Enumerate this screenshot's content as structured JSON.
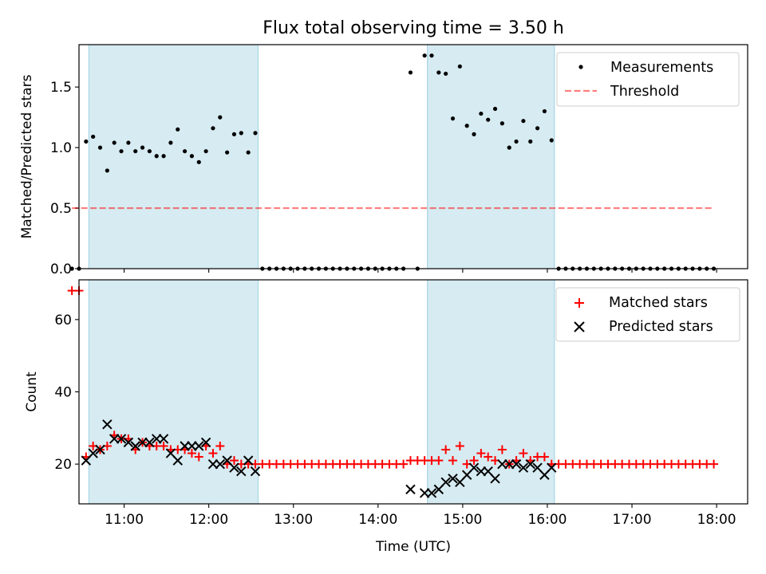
{
  "title": "Flux total observing time = 3.50 h",
  "colors": {
    "shade": "#add8e6",
    "threshold": "#ff0000",
    "measurements": "#000000",
    "matched": "#ff0000",
    "predicted": "#000000"
  },
  "chart_data": [
    {
      "type": "scatter",
      "ylabel": "Matched/Predicted stars",
      "ylim": [
        0,
        1.85
      ],
      "yticks": [
        0.0,
        0.5,
        1.0,
        1.5
      ],
      "ytick_labels": [
        "0.0",
        "0.5",
        "1.0",
        "1.5"
      ],
      "xlim": [
        "10:28",
        "18:22"
      ],
      "legend_position": "top-right",
      "shaded_intervals": [
        [
          "10:35",
          "12:35"
        ],
        [
          "14:35",
          "16:05"
        ]
      ],
      "threshold": {
        "name": "Threshold",
        "value": 0.5,
        "x_range": [
          "10:23",
          "17:57"
        ]
      },
      "series": [
        {
          "name": "Measurements",
          "points": [
            [
              "10:23",
              0
            ],
            [
              "10:28",
              0
            ],
            [
              "10:33",
              1.05
            ],
            [
              "10:38",
              1.09
            ],
            [
              "10:43",
              1.0
            ],
            [
              "10:48",
              0.81
            ],
            [
              "10:53",
              1.04
            ],
            [
              "10:58",
              0.97
            ],
            [
              "11:03",
              1.04
            ],
            [
              "11:08",
              0.97
            ],
            [
              "11:13",
              1.0
            ],
            [
              "11:18",
              0.97
            ],
            [
              "11:23",
              0.93
            ],
            [
              "11:28",
              0.93
            ],
            [
              "11:33",
              1.04
            ],
            [
              "11:38",
              1.15
            ],
            [
              "11:43",
              0.97
            ],
            [
              "11:48",
              0.93
            ],
            [
              "11:53",
              0.88
            ],
            [
              "11:58",
              0.97
            ],
            [
              "12:03",
              1.16
            ],
            [
              "12:08",
              1.25
            ],
            [
              "12:13",
              0.96
            ],
            [
              "12:18",
              1.11
            ],
            [
              "12:23",
              1.12
            ],
            [
              "12:28",
              0.96
            ],
            [
              "12:33",
              1.12
            ],
            [
              "12:38",
              0
            ],
            [
              "12:43",
              0
            ],
            [
              "12:48",
              0
            ],
            [
              "12:53",
              0
            ],
            [
              "12:58",
              0
            ],
            [
              "13:03",
              0
            ],
            [
              "13:08",
              0
            ],
            [
              "13:13",
              0
            ],
            [
              "13:18",
              0
            ],
            [
              "13:23",
              0
            ],
            [
              "13:28",
              0
            ],
            [
              "13:33",
              0
            ],
            [
              "13:38",
              0
            ],
            [
              "13:43",
              0
            ],
            [
              "13:48",
              0
            ],
            [
              "13:53",
              0
            ],
            [
              "13:58",
              0
            ],
            [
              "14:03",
              0
            ],
            [
              "14:08",
              0
            ],
            [
              "14:13",
              0
            ],
            [
              "14:18",
              0
            ],
            [
              "14:23",
              1.62
            ],
            [
              "14:28",
              0
            ],
            [
              "14:33",
              1.76
            ],
            [
              "14:38",
              1.76
            ],
            [
              "14:43",
              1.62
            ],
            [
              "14:48",
              1.61
            ],
            [
              "14:53",
              1.24
            ],
            [
              "14:58",
              1.67
            ],
            [
              "15:03",
              1.18
            ],
            [
              "15:08",
              1.11
            ],
            [
              "15:13",
              1.28
            ],
            [
              "15:18",
              1.23
            ],
            [
              "15:23",
              1.32
            ],
            [
              "15:28",
              1.2
            ],
            [
              "15:33",
              1.0
            ],
            [
              "15:38",
              1.05
            ],
            [
              "15:43",
              1.22
            ],
            [
              "15:48",
              1.05
            ],
            [
              "15:53",
              1.16
            ],
            [
              "15:58",
              1.3
            ],
            [
              "16:03",
              1.06
            ],
            [
              "16:08",
              0
            ],
            [
              "16:13",
              0
            ],
            [
              "16:18",
              0
            ],
            [
              "16:23",
              0
            ],
            [
              "16:28",
              0
            ],
            [
              "16:33",
              0
            ],
            [
              "16:38",
              0
            ],
            [
              "16:43",
              0
            ],
            [
              "16:48",
              0
            ],
            [
              "16:53",
              0
            ],
            [
              "16:58",
              0
            ],
            [
              "17:03",
              0
            ],
            [
              "17:08",
              0
            ],
            [
              "17:13",
              0
            ],
            [
              "17:18",
              0
            ],
            [
              "17:23",
              0
            ],
            [
              "17:28",
              0
            ],
            [
              "17:33",
              0
            ],
            [
              "17:38",
              0
            ],
            [
              "17:43",
              0
            ],
            [
              "17:48",
              0
            ],
            [
              "17:53",
              0
            ],
            [
              "17:58",
              0
            ]
          ]
        }
      ]
    },
    {
      "type": "scatter",
      "ylabel": "Count",
      "xlabel": "Time (UTC)",
      "ylim": [
        9,
        71
      ],
      "yticks": [
        20,
        40,
        60
      ],
      "ytick_labels": [
        "20",
        "40",
        "60"
      ],
      "xlim": [
        "10:28",
        "18:22"
      ],
      "xticks": [
        "11:00",
        "12:00",
        "13:00",
        "14:00",
        "15:00",
        "16:00",
        "17:00",
        "18:00"
      ],
      "xtick_labels": [
        "11:00",
        "12:00",
        "13:00",
        "14:00",
        "15:00",
        "16:00",
        "17:00",
        "18:00"
      ],
      "legend_position": "top-right",
      "shaded_intervals": [
        [
          "10:35",
          "12:35"
        ],
        [
          "14:35",
          "16:05"
        ]
      ],
      "series": [
        {
          "name": "Matched stars",
          "marker": "plus",
          "points": [
            [
              "10:23",
              68
            ],
            [
              "10:28",
              68
            ],
            [
              "10:33",
              22
            ],
            [
              "10:38",
              25
            ],
            [
              "10:43",
              24
            ],
            [
              "10:48",
              25
            ],
            [
              "10:53",
              28
            ],
            [
              "10:58",
              27
            ],
            [
              "11:03",
              27
            ],
            [
              "11:08",
              24
            ],
            [
              "11:13",
              26
            ],
            [
              "11:18",
              25
            ],
            [
              "11:23",
              25
            ],
            [
              "11:28",
              25
            ],
            [
              "11:33",
              24
            ],
            [
              "11:38",
              24
            ],
            [
              "11:43",
              24
            ],
            [
              "11:48",
              23
            ],
            [
              "11:53",
              22
            ],
            [
              "11:58",
              25
            ],
            [
              "12:03",
              23
            ],
            [
              "12:08",
              25
            ],
            [
              "12:13",
              20
            ],
            [
              "12:18",
              21
            ],
            [
              "12:23",
              20
            ],
            [
              "12:28",
              20
            ],
            [
              "12:33",
              20
            ],
            [
              "12:38",
              20
            ],
            [
              "12:43",
              20
            ],
            [
              "12:48",
              20
            ],
            [
              "12:53",
              20
            ],
            [
              "12:58",
              20
            ],
            [
              "13:03",
              20
            ],
            [
              "13:08",
              20
            ],
            [
              "13:13",
              20
            ],
            [
              "13:18",
              20
            ],
            [
              "13:23",
              20
            ],
            [
              "13:28",
              20
            ],
            [
              "13:33",
              20
            ],
            [
              "13:38",
              20
            ],
            [
              "13:43",
              20
            ],
            [
              "13:48",
              20
            ],
            [
              "13:53",
              20
            ],
            [
              "13:58",
              20
            ],
            [
              "14:03",
              20
            ],
            [
              "14:08",
              20
            ],
            [
              "14:13",
              20
            ],
            [
              "14:18",
              20
            ],
            [
              "14:23",
              21
            ],
            [
              "14:28",
              21
            ],
            [
              "14:33",
              21
            ],
            [
              "14:38",
              21
            ],
            [
              "14:43",
              21
            ],
            [
              "14:48",
              24
            ],
            [
              "14:53",
              21
            ],
            [
              "14:58",
              25
            ],
            [
              "15:03",
              20
            ],
            [
              "15:08",
              21
            ],
            [
              "15:13",
              23
            ],
            [
              "15:18",
              22
            ],
            [
              "15:23",
              21
            ],
            [
              "15:28",
              24
            ],
            [
              "15:33",
              20
            ],
            [
              "15:38",
              21
            ],
            [
              "15:43",
              23
            ],
            [
              "15:48",
              21
            ],
            [
              "15:53",
              22
            ],
            [
              "15:58",
              22
            ],
            [
              "16:03",
              20
            ],
            [
              "16:08",
              20
            ],
            [
              "16:13",
              20
            ],
            [
              "16:18",
              20
            ],
            [
              "16:23",
              20
            ],
            [
              "16:28",
              20
            ],
            [
              "16:33",
              20
            ],
            [
              "16:38",
              20
            ],
            [
              "16:43",
              20
            ],
            [
              "16:48",
              20
            ],
            [
              "16:53",
              20
            ],
            [
              "16:58",
              20
            ],
            [
              "17:03",
              20
            ],
            [
              "17:08",
              20
            ],
            [
              "17:13",
              20
            ],
            [
              "17:18",
              20
            ],
            [
              "17:23",
              20
            ],
            [
              "17:28",
              20
            ],
            [
              "17:33",
              20
            ],
            [
              "17:38",
              20
            ],
            [
              "17:43",
              20
            ],
            [
              "17:48",
              20
            ],
            [
              "17:53",
              20
            ],
            [
              "17:58",
              20
            ]
          ]
        },
        {
          "name": "Predicted stars",
          "marker": "x",
          "points": [
            [
              "10:33",
              21
            ],
            [
              "10:38",
              23
            ],
            [
              "10:43",
              24
            ],
            [
              "10:48",
              31
            ],
            [
              "10:53",
              27
            ],
            [
              "10:58",
              27
            ],
            [
              "11:03",
              26
            ],
            [
              "11:08",
              25
            ],
            [
              "11:13",
              26
            ],
            [
              "11:18",
              26
            ],
            [
              "11:23",
              27
            ],
            [
              "11:28",
              27
            ],
            [
              "11:33",
              23
            ],
            [
              "11:38",
              21
            ],
            [
              "11:43",
              25
            ],
            [
              "11:48",
              25
            ],
            [
              "11:53",
              25
            ],
            [
              "11:58",
              26
            ],
            [
              "12:03",
              20
            ],
            [
              "12:08",
              20
            ],
            [
              "12:13",
              21
            ],
            [
              "12:18",
              19
            ],
            [
              "12:23",
              18
            ],
            [
              "12:28",
              21
            ],
            [
              "12:33",
              18
            ],
            [
              "14:23",
              13
            ],
            [
              "14:33",
              12
            ],
            [
              "14:38",
              12
            ],
            [
              "14:43",
              13
            ],
            [
              "14:48",
              15
            ],
            [
              "14:53",
              16
            ],
            [
              "14:58",
              15
            ],
            [
              "15:03",
              17
            ],
            [
              "15:08",
              19
            ],
            [
              "15:13",
              18
            ],
            [
              "15:18",
              18
            ],
            [
              "15:23",
              16
            ],
            [
              "15:28",
              20
            ],
            [
              "15:33",
              20
            ],
            [
              "15:38",
              20
            ],
            [
              "15:43",
              19
            ],
            [
              "15:48",
              20
            ],
            [
              "15:53",
              19
            ],
            [
              "15:58",
              17
            ],
            [
              "16:03",
              19
            ]
          ]
        }
      ]
    }
  ]
}
